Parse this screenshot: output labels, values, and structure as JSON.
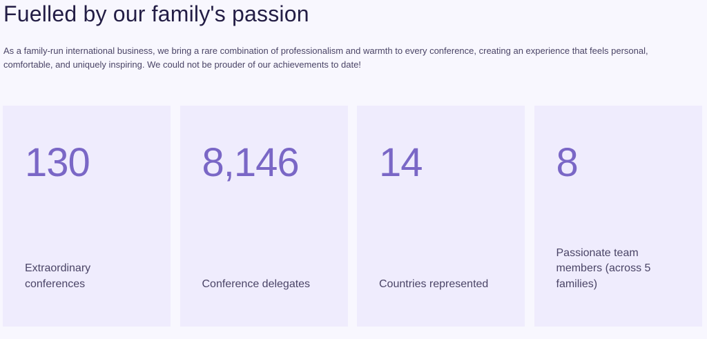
{
  "header": {
    "title": "Fuelled by our family's passion",
    "intro": "As a family-run international business, we bring a rare combination of professionalism and warmth to every conference, creating an experience that feels personal, comfortable, and uniquely inspiring. We could not be prouder of our achievements to date!"
  },
  "stats": [
    {
      "value": "130",
      "label": "Extraordinary conferences"
    },
    {
      "value": "8,146",
      "label": "Conference delegates"
    },
    {
      "value": "14",
      "label": "Countries represented"
    },
    {
      "value": "8",
      "label": "Passionate team members (across 5 families)"
    }
  ],
  "colors": {
    "background": "#f8f7fe",
    "card": "#efecfd",
    "accent": "#7a67c6",
    "heading": "#231d45",
    "text": "#4a4466"
  }
}
